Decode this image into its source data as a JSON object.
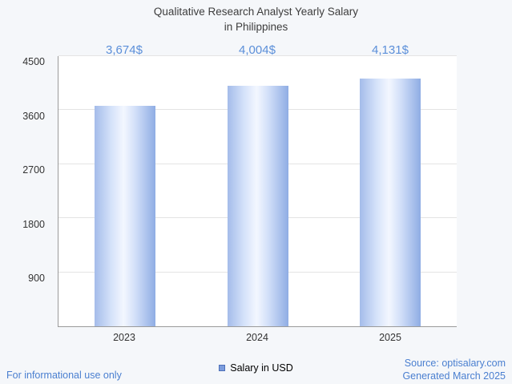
{
  "title": {
    "line1": "Qualitative Research Analyst Yearly Salary",
    "line2": "in Philippines"
  },
  "legend": {
    "label": "Salary in USD",
    "marker_color": "#7b9cdd"
  },
  "footer": {
    "disclaimer": "For informational use only",
    "source": "Source: optisalary.com",
    "generated": "Generated March 2025"
  },
  "colors": {
    "accent_blue": "#5b8fd9",
    "bar_edge": "#8fade4",
    "bar_center": "#f3f7ff",
    "grid": "#e4e4e4",
    "axis": "#9a9a9a",
    "title_text": "#3d3d3d"
  },
  "chart_data": {
    "type": "bar",
    "title": "Qualitative Research Analyst Yearly Salary in Philippines",
    "categories": [
      "2023",
      "2024",
      "2025"
    ],
    "values": [
      3674,
      4004,
      4131
    ],
    "value_labels": [
      "3,674$",
      "4,004$",
      "4,131$"
    ],
    "series_name": "Salary in USD",
    "xlabel": "",
    "ylabel": "",
    "ylim": [
      0,
      4500
    ],
    "yticks": [
      900,
      1800,
      2700,
      3600,
      4500
    ],
    "grid": true,
    "legend_position": "bottom"
  }
}
